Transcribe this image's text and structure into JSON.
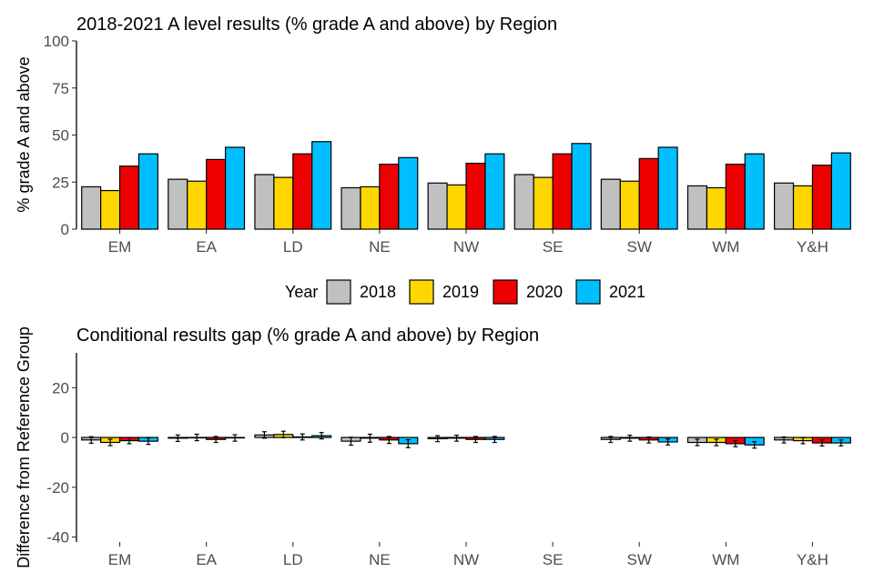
{
  "colors": {
    "2018": "#c0c0c0",
    "2019": "#ffd700",
    "2020": "#ee0000",
    "2021": "#00bfff",
    "axis": "#000000",
    "tick_text": "#4d4d4d"
  },
  "legend": {
    "title": "Year",
    "entries": [
      "2018",
      "2019",
      "2020",
      "2021"
    ]
  },
  "chart_data": [
    {
      "type": "bar",
      "title": "2018-2021 A level results (% grade A and above) by Region",
      "xlabel": "",
      "ylabel": "% grade A and above",
      "ylim": [
        0,
        100
      ],
      "yticks": [
        0,
        25,
        50,
        75,
        100
      ],
      "categories": [
        "EM",
        "EA",
        "LD",
        "NE",
        "NW",
        "SE",
        "SW",
        "WM",
        "Y&H"
      ],
      "series": [
        {
          "name": "2018",
          "values": [
            22.5,
            26.5,
            29,
            22,
            24.5,
            29,
            26.5,
            23,
            24.5
          ]
        },
        {
          "name": "2019",
          "values": [
            20.5,
            25.5,
            27.5,
            22.5,
            23.5,
            27.5,
            25.5,
            22,
            23
          ]
        },
        {
          "name": "2020",
          "values": [
            33.5,
            37,
            40,
            34.5,
            35,
            40,
            37.5,
            34.5,
            34
          ]
        },
        {
          "name": "2021",
          "values": [
            40,
            43.5,
            46.5,
            38,
            40,
            45.5,
            43.5,
            40,
            40.5
          ]
        }
      ]
    },
    {
      "type": "bar",
      "title": "Conditional results gap (% grade A and above) by Region",
      "xlabel": "",
      "ylabel": "Difference from Reference Group",
      "ylim": [
        -42,
        34
      ],
      "yticks": [
        -40,
        -20,
        0,
        20
      ],
      "yticklabels": [
        "-40",
        "-20",
        "0",
        "20"
      ],
      "categories": [
        "EM",
        "EA",
        "LD",
        "NE",
        "NW",
        "SE",
        "SW",
        "WM",
        "Y&H"
      ],
      "series": [
        {
          "name": "2018",
          "values": [
            -1,
            -0.3,
            1,
            -1.5,
            -0.5,
            null,
            -0.8,
            -2,
            -1
          ],
          "errors": [
            1.3,
            1.3,
            1.3,
            1.6,
            1.2,
            null,
            1.2,
            1.3,
            1.2
          ]
        },
        {
          "name": "2019",
          "values": [
            -2,
            0,
            1.2,
            -0.3,
            -0.3,
            null,
            -0.3,
            -2,
            -1.3
          ],
          "errors": [
            1.3,
            1.3,
            1.3,
            1.6,
            1.2,
            null,
            1.2,
            1.3,
            1.2
          ]
        },
        {
          "name": "2020",
          "values": [
            -1.3,
            -0.8,
            0.2,
            -1,
            -0.8,
            null,
            -1,
            -2.5,
            -2.2
          ],
          "errors": [
            1.2,
            1.2,
            1.2,
            1.4,
            1.2,
            null,
            1.2,
            1.2,
            1.2
          ]
        },
        {
          "name": "2021",
          "values": [
            -1.5,
            -0.2,
            0.7,
            -2.5,
            -0.8,
            null,
            -1.8,
            -3,
            -2.2
          ],
          "errors": [
            1.3,
            1.3,
            1.3,
            1.6,
            1.2,
            null,
            1.2,
            1.3,
            1.2
          ]
        }
      ]
    }
  ]
}
